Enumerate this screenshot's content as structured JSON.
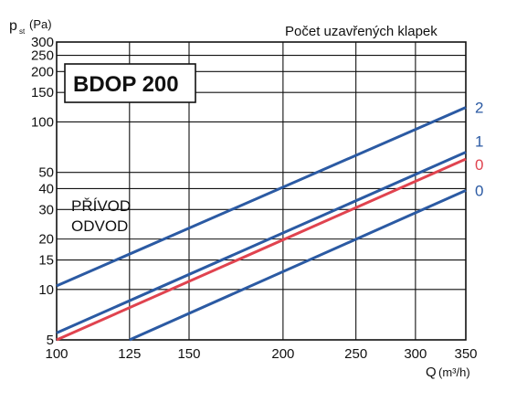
{
  "chart_data": {
    "type": "line",
    "title": "BDOP 200",
    "legend_title": "Počet uzavřených klapek",
    "xlabel": "Q",
    "xunit": "(m³/h)",
    "ylabel": "p",
    "ylabel_sub": "st",
    "yunit": "(Pa)",
    "xscale": "log",
    "yscale": "log",
    "xlim": [
      100,
      350
    ],
    "ylim": [
      5,
      300
    ],
    "xticks": [
      100,
      125,
      150,
      200,
      250,
      300,
      350
    ],
    "yticks": [
      5,
      10,
      15,
      20,
      30,
      40,
      50,
      100,
      150,
      200,
      250,
      300
    ],
    "grid": true,
    "series": [
      {
        "name": "2",
        "group": "PŘÍVOD",
        "color": "#2b5aa3",
        "x": [
          100,
          350
        ],
        "y": [
          10.5,
          122
        ]
      },
      {
        "name": "1",
        "group": "PŘÍVOD",
        "color": "#2b5aa3",
        "x": [
          100,
          350
        ],
        "y": [
          5.5,
          66
        ]
      },
      {
        "name": "0",
        "group": "ODVOD",
        "color": "#e0434f",
        "x": [
          100,
          350
        ],
        "y": [
          5,
          60
        ]
      },
      {
        "name": "0",
        "group": "PŘÍVOD",
        "color": "#2b5aa3",
        "x": [
          125,
          350
        ],
        "y": [
          5,
          39
        ]
      }
    ],
    "legend": [
      {
        "label": "PŘÍVOD",
        "color": "#2b5aa3"
      },
      {
        "label": "ODVOD",
        "color": "#e0434f"
      }
    ]
  }
}
